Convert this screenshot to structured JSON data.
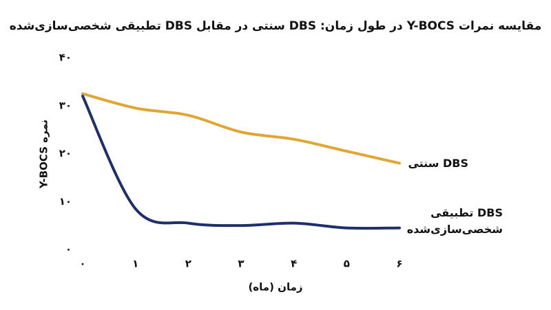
{
  "chart_data": {
    "type": "line",
    "title": "مقایسه نمرات Y-BOCS در طول زمان: DBS سنتی در مقابل DBS تطبیقی شخصی‌سازی‌شده",
    "x_label": "زمان (ماه)",
    "y_label": "نمره Y-BOCS",
    "x": [
      0,
      1,
      2,
      3,
      4,
      5,
      6
    ],
    "series": [
      {
        "name": "DBS سنتی",
        "color": "#e0a634",
        "values": [
          32.5,
          29.5,
          28,
          24.5,
          23,
          20.5,
          18
        ]
      },
      {
        "name": "DBS تطبیقی شخصی‌سازی‌شده",
        "color": "#1f2f6b",
        "values": [
          32,
          8.5,
          5.5,
          5,
          5.5,
          4.5,
          4.5
        ]
      }
    ],
    "xlim": [
      0,
      6
    ],
    "xticks": [
      {
        "value": 0,
        "label": "۰"
      },
      {
        "value": 1,
        "label": "۱"
      },
      {
        "value": 2,
        "label": "۲"
      },
      {
        "value": 3,
        "label": "۳"
      },
      {
        "value": 4,
        "label": "۴"
      },
      {
        "value": 5,
        "label": "۵"
      },
      {
        "value": 6,
        "label": "۶"
      }
    ],
    "ylim": [
      0,
      40
    ],
    "yticks": [
      {
        "value": 0,
        "label": "۰"
      },
      {
        "value": 10,
        "label": "۱۰"
      },
      {
        "value": 20,
        "label": "۲۰"
      },
      {
        "value": 30,
        "label": "۳۰"
      },
      {
        "value": 40,
        "label": "۴۰"
      }
    ],
    "grid": false
  }
}
